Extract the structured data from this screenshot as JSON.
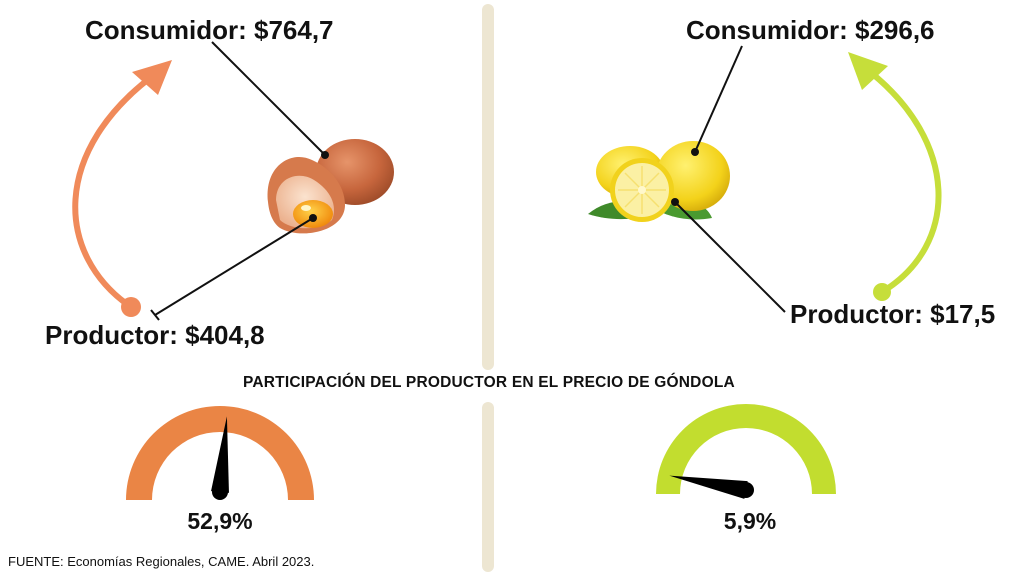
{
  "left": {
    "product_icon": "egg-icon",
    "consumidor_label": "Consumidor: $764,7",
    "productor_label": "Productor: $404,8",
    "gauge_value_pct": 52.9,
    "gauge_label": "52,9%",
    "accent_color": "#f08a5a",
    "gauge_color": "#ea8545"
  },
  "right": {
    "product_icon": "lemon-icon",
    "consumidor_label": "Consumidor: $296,6",
    "productor_label": "Productor: $17,5",
    "gauge_value_pct": 5.9,
    "gauge_label": "5,9%",
    "accent_color": "#c6de3a",
    "gauge_color": "#c2dd2f"
  },
  "headline": "PARTICIPACIÓN DEL PRODUCTOR EN EL PRECIO DE GÓNDOLA",
  "source": "FUENTE: Economías Regionales, CAME. Abril 2023."
}
